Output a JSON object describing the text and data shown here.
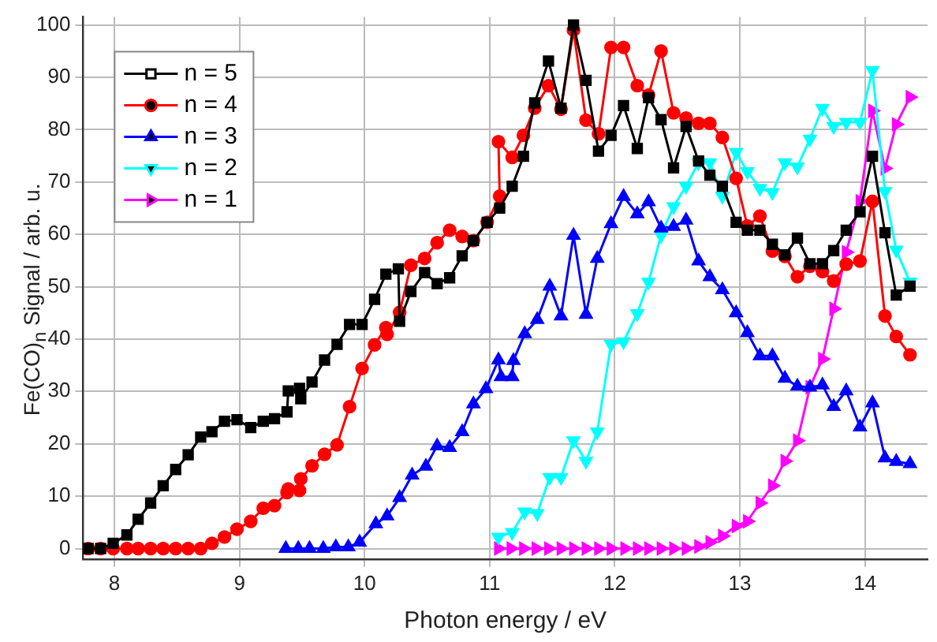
{
  "chart_data": {
    "type": "line",
    "xlabel": "Photon energy / eV",
    "ylabel": "Fe(CO)$_{n}$ Signal / arb. u.",
    "xlim": [
      7.75,
      14.5
    ],
    "xticks": [
      8,
      9,
      10,
      11,
      12,
      13,
      14
    ],
    "ylim": [
      -2,
      101.5
    ],
    "yticks": [
      0,
      10,
      20,
      30,
      40,
      50,
      60,
      70,
      80,
      90,
      100
    ],
    "grid": true,
    "legend": "top left",
    "line_style": "solid",
    "series": [
      {
        "name": "n = 5",
        "color": "#000000",
        "marker": "square",
        "x": [
          7.79,
          7.89,
          7.99,
          8.1,
          8.19,
          8.29,
          8.39,
          8.49,
          8.59,
          8.69,
          8.78,
          8.88,
          8.98,
          9.09,
          9.19,
          9.28,
          9.38,
          9.39,
          9.48,
          9.49,
          9.58,
          9.68,
          9.78,
          9.88,
          9.98,
          10.08,
          10.17,
          10.27,
          10.28,
          10.37,
          10.48,
          10.58,
          10.68,
          10.78,
          10.87,
          10.98,
          11.08,
          11.18,
          11.27,
          11.36,
          11.47,
          11.57,
          11.67,
          11.77,
          11.87,
          11.97,
          12.07,
          12.18,
          12.27,
          12.37,
          12.47,
          12.57,
          12.67,
          12.76,
          12.86,
          12.97,
          13.06,
          13.16,
          13.26,
          13.36,
          13.46,
          13.56,
          13.66,
          13.75,
          13.85,
          13.96,
          14.06,
          14.16,
          14.25,
          14.36
        ],
        "values": [
          0,
          0,
          1,
          2.6,
          5.6,
          8.7,
          12,
          15.1,
          17.9,
          21.3,
          22.3,
          24.3,
          24.6,
          23.1,
          24.3,
          24.8,
          26.1,
          30.1,
          30.6,
          28.6,
          31.8,
          36,
          39,
          42.8,
          42.8,
          47.6,
          52.4,
          53.4,
          43.4,
          49.1,
          52.7,
          50.6,
          51.7,
          55.9,
          58.8,
          62.3,
          65,
          69.2,
          74.9,
          85.1,
          93.1,
          84.1,
          100,
          89.4,
          75.9,
          78.9,
          84.6,
          76.4,
          86.1,
          81.9,
          72.7,
          80.6,
          74,
          71.3,
          69.2,
          62.3,
          60.8,
          60.8,
          58.1,
          56.1,
          59.3,
          54.4,
          54.4,
          56.9,
          60.8,
          64.3,
          74.9,
          60.3,
          48.4,
          50.1
        ]
      },
      {
        "name": "n = 4",
        "color": "#ff0000",
        "marker": "circle",
        "x": [
          7.79,
          7.89,
          7.99,
          8.1,
          8.19,
          8.29,
          8.39,
          8.49,
          8.59,
          8.69,
          8.78,
          8.88,
          8.98,
          9.09,
          9.19,
          9.28,
          9.38,
          9.39,
          9.48,
          9.49,
          9.58,
          9.68,
          9.78,
          9.88,
          9.98,
          10.08,
          10.17,
          10.18,
          10.28,
          10.37,
          10.48,
          10.58,
          10.68,
          10.78,
          10.87,
          10.98,
          11.08,
          11.07,
          11.18,
          11.27,
          11.36,
          11.47,
          11.57,
          11.67,
          11.77,
          11.87,
          11.97,
          12.07,
          12.18,
          12.27,
          12.37,
          12.47,
          12.57,
          12.67,
          12.76,
          12.86,
          12.97,
          13.06,
          13.16,
          13.26,
          13.36,
          13.46,
          13.56,
          13.66,
          13.75,
          13.85,
          13.96,
          14.06,
          14.16,
          14.25,
          14.36
        ],
        "values": [
          0,
          0,
          0,
          0,
          0,
          0,
          0,
          0,
          0,
          0,
          1,
          2.2,
          3.7,
          5.2,
          7.7,
          8.2,
          10.7,
          11.4,
          11.1,
          13.3,
          15.8,
          18,
          19.8,
          27.1,
          34.4,
          38.9,
          42.2,
          40.9,
          45.1,
          54.1,
          55.4,
          58.4,
          60.8,
          59.6,
          58.8,
          62.3,
          67.3,
          77.7,
          74.7,
          78.9,
          84.1,
          88.4,
          83.9,
          99,
          81.8,
          79.2,
          95.7,
          95.7,
          88.4,
          86.6,
          95,
          83.2,
          82.2,
          81.2,
          81.2,
          78.5,
          70.7,
          61.6,
          63.5,
          56.8,
          55.8,
          51.9,
          53.9,
          52.9,
          51.1,
          54.3,
          54.9,
          66.3,
          44.4,
          40.5,
          37
        ]
      },
      {
        "name": "n = 3",
        "color": "#0000ff",
        "marker": "triangle",
        "x": [
          9.37,
          9.47,
          9.56,
          9.67,
          9.77,
          9.87,
          9.96,
          10.09,
          10.18,
          10.28,
          10.38,
          10.49,
          10.58,
          10.68,
          10.78,
          10.87,
          10.97,
          11.07,
          11.09,
          11.18,
          11.19,
          11.28,
          11.38,
          11.48,
          11.57,
          11.67,
          11.77,
          11.86,
          11.97,
          12.07,
          12.18,
          12.27,
          12.37,
          12.47,
          12.57,
          12.67,
          12.76,
          12.86,
          12.97,
          13.06,
          13.16,
          13.26,
          13.36,
          13.46,
          13.56,
          13.66,
          13.75,
          13.85,
          13.96,
          14.06,
          14.16,
          14.25,
          14.36
        ],
        "values": [
          0,
          0,
          0,
          0,
          0.3,
          0.3,
          1.2,
          4.7,
          6.2,
          9.7,
          14,
          15.7,
          19.6,
          19.3,
          22.3,
          27.6,
          30.5,
          36,
          32.8,
          32.8,
          35.9,
          41,
          43.7,
          50.1,
          44.4,
          59.8,
          44.7,
          55.4,
          62,
          67.2,
          63.9,
          66.2,
          61.2,
          61.5,
          62.7,
          54.9,
          51.9,
          49.4,
          45,
          41.2,
          36.8,
          36.8,
          32.5,
          31,
          30.8,
          31.2,
          27.1,
          30.1,
          23.2,
          27.8,
          17.3,
          16.6,
          16.2
        ]
      },
      {
        "name": "n = 2",
        "color": "#00ffff",
        "marker": "triangle-down",
        "x": [
          11.07,
          11.18,
          11.28,
          11.38,
          11.48,
          11.57,
          11.67,
          11.77,
          11.86,
          11.97,
          12.07,
          12.18,
          12.27,
          12.37,
          12.47,
          12.57,
          12.67,
          12.76,
          12.86,
          12.97,
          13.06,
          13.16,
          13.26,
          13.36,
          13.46,
          13.56,
          13.66,
          13.75,
          13.85,
          13.96,
          14.06,
          14.16,
          14.25,
          14.36
        ],
        "values": [
          2.2,
          3.1,
          7,
          6.7,
          13.6,
          13.6,
          20.6,
          16.7,
          22.3,
          39,
          39.5,
          44.9,
          50.9,
          59.8,
          65.3,
          69.2,
          73.7,
          73.7,
          67.3,
          75.7,
          72,
          68.8,
          68,
          73.7,
          72.9,
          78.2,
          84.1,
          80.6,
          81.4,
          81.4,
          91.3,
          68.2,
          57,
          50.9
        ]
      },
      {
        "name": "n = 1",
        "color": "#ff00ff",
        "marker": "triangle-right",
        "x": [
          11.07,
          11.17,
          11.27,
          11.37,
          11.47,
          11.57,
          11.67,
          11.77,
          11.87,
          11.97,
          12.08,
          12.18,
          12.27,
          12.37,
          12.47,
          12.57,
          12.67,
          12.76,
          12.86,
          12.97,
          13.06,
          13.16,
          13.26,
          13.36,
          13.46,
          13.56,
          13.66,
          13.75,
          13.85,
          13.96,
          14.06,
          14.16,
          14.25,
          14.36
        ],
        "values": [
          0,
          0,
          0,
          0,
          0,
          0,
          0,
          0,
          0,
          0,
          0,
          0,
          0,
          0,
          0,
          0,
          0.4,
          1.2,
          2.4,
          4.3,
          5.2,
          8.7,
          12,
          16.7,
          20.6,
          30.8,
          36.2,
          45.8,
          56.6,
          66.3,
          83.6,
          72.6,
          81,
          86.2
        ]
      }
    ]
  }
}
